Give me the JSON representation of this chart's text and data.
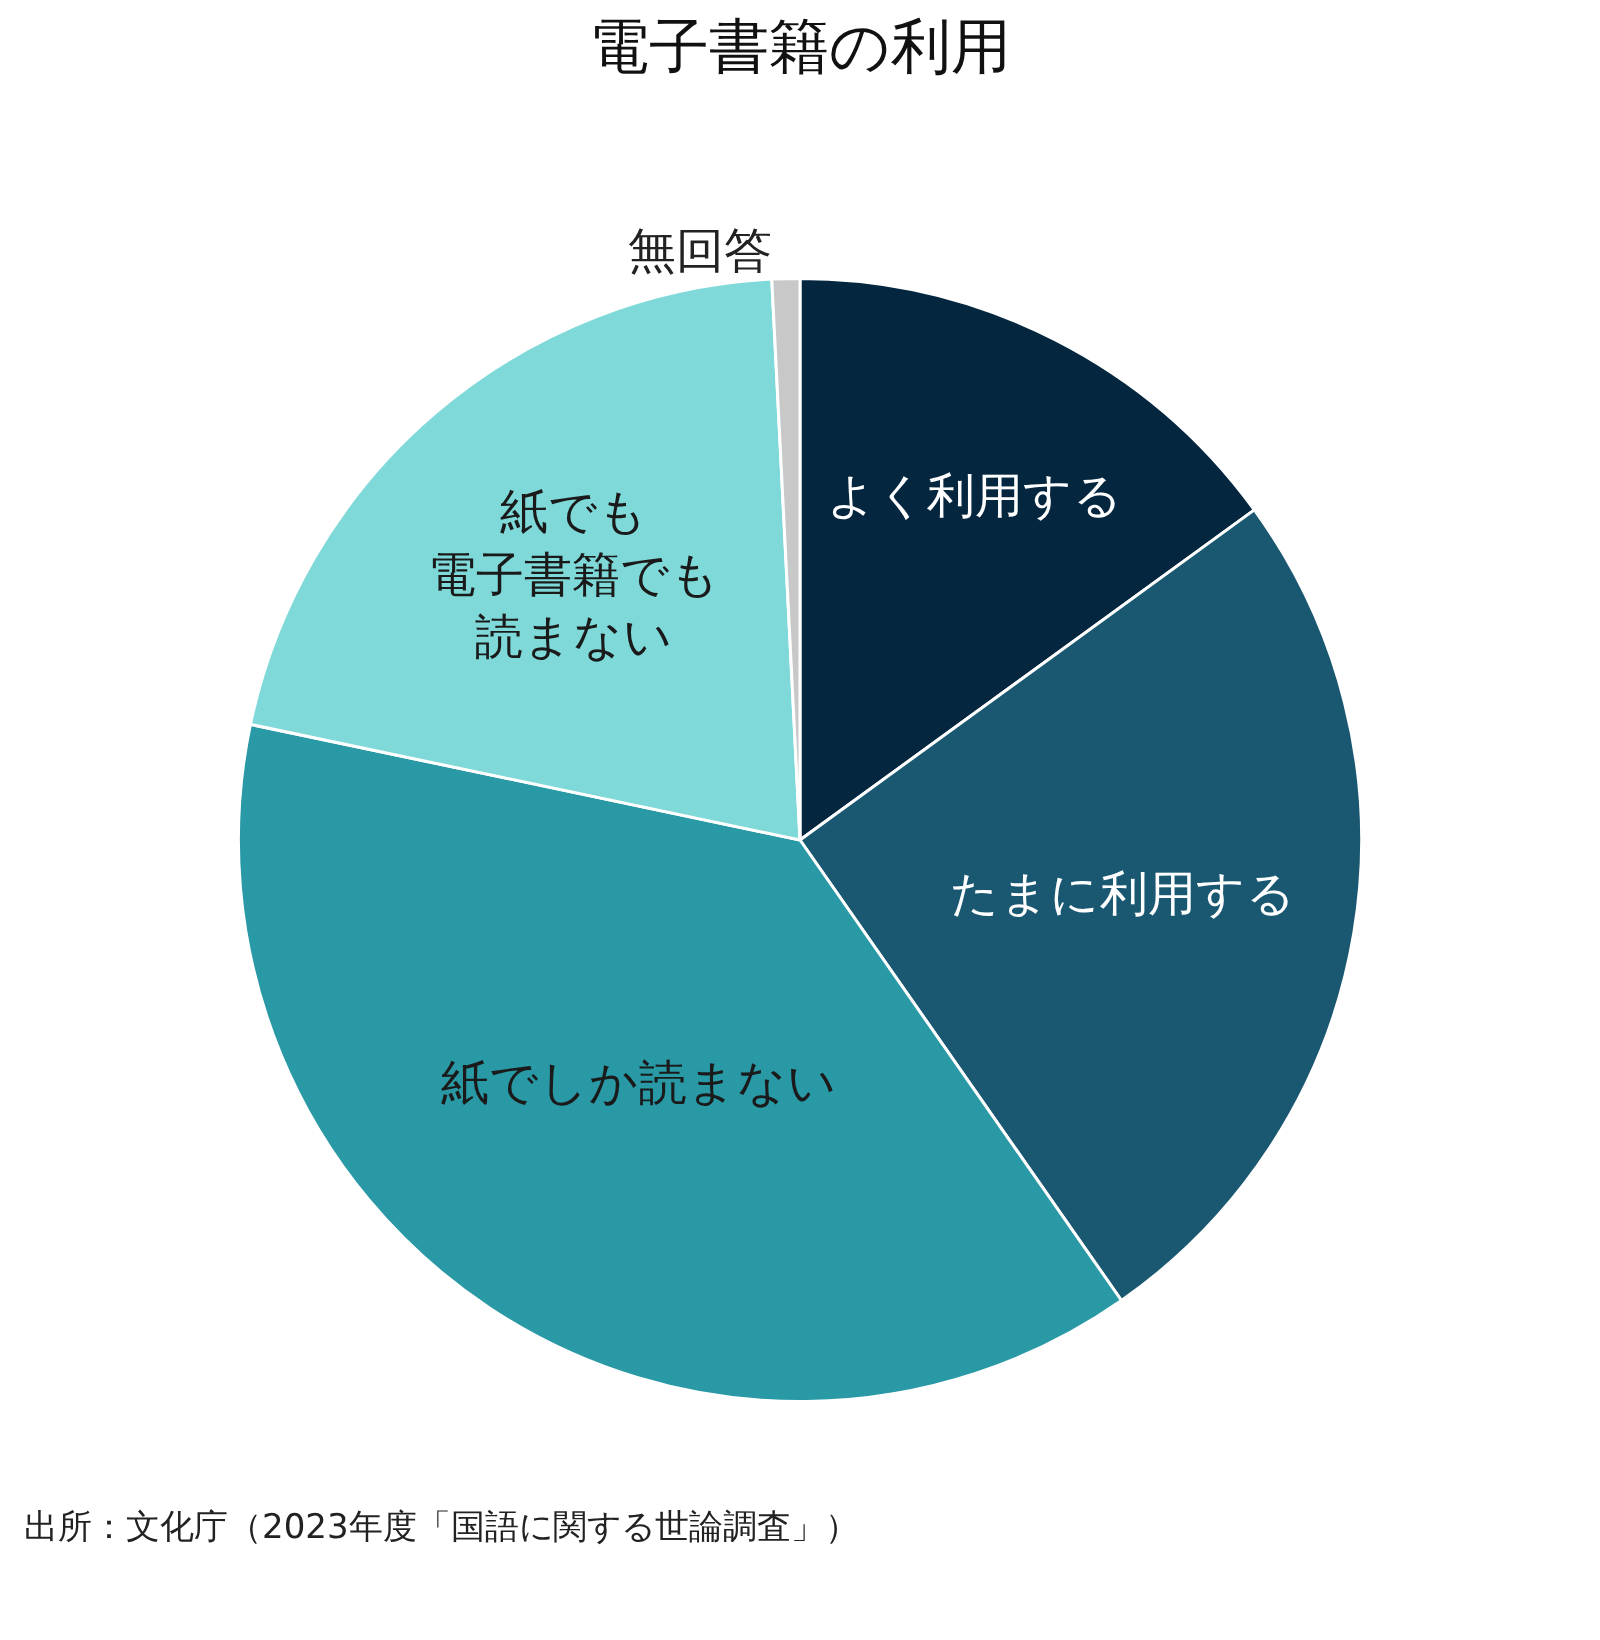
{
  "chart_data": {
    "type": "pie",
    "title": "電子書籍の利用",
    "categories": [
      "よく利用する",
      "たまに利用する",
      "紙でしか読まない",
      "紙でも電子書籍でも読まない",
      "無回答"
    ],
    "values": [
      15,
      25.3,
      38,
      20.9,
      0.8
    ],
    "colors": [
      "#04263f",
      "#1a5872",
      "#2999a6",
      "#7fd9d9",
      "#c8c8c8"
    ],
    "legend": false,
    "annotations": [
      "出所：文化庁（2023年度「国語に関する世論調査」）"
    ]
  }
}
